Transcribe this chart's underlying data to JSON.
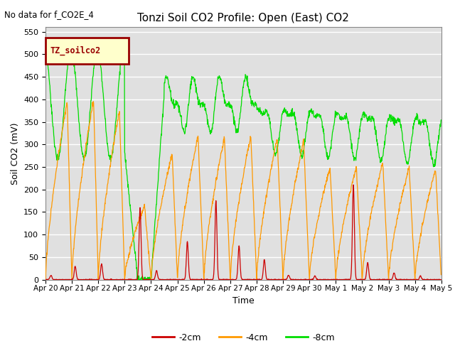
{
  "title": "Tonzi Soil CO2 Profile: Open (East) CO2",
  "top_left_text": "No data for f_CO2E_4",
  "legend_box_text": "TZ_soilco2",
  "xlabel": "Time",
  "ylabel": "Soil CO2 (mV)",
  "ylim": [
    0,
    560
  ],
  "yticks": [
    0,
    50,
    100,
    150,
    200,
    250,
    300,
    350,
    400,
    450,
    500,
    550
  ],
  "background_color": "#ffffff",
  "plot_bg_color": "#e0e0e0",
  "colors": {
    "2cm": "#cc0000",
    "4cm": "#ff9900",
    "8cm": "#00dd00"
  },
  "legend_labels": [
    "-2cm",
    "-4cm",
    "-8cm"
  ],
  "figsize": [
    6.4,
    4.8
  ],
  "dpi": 100
}
